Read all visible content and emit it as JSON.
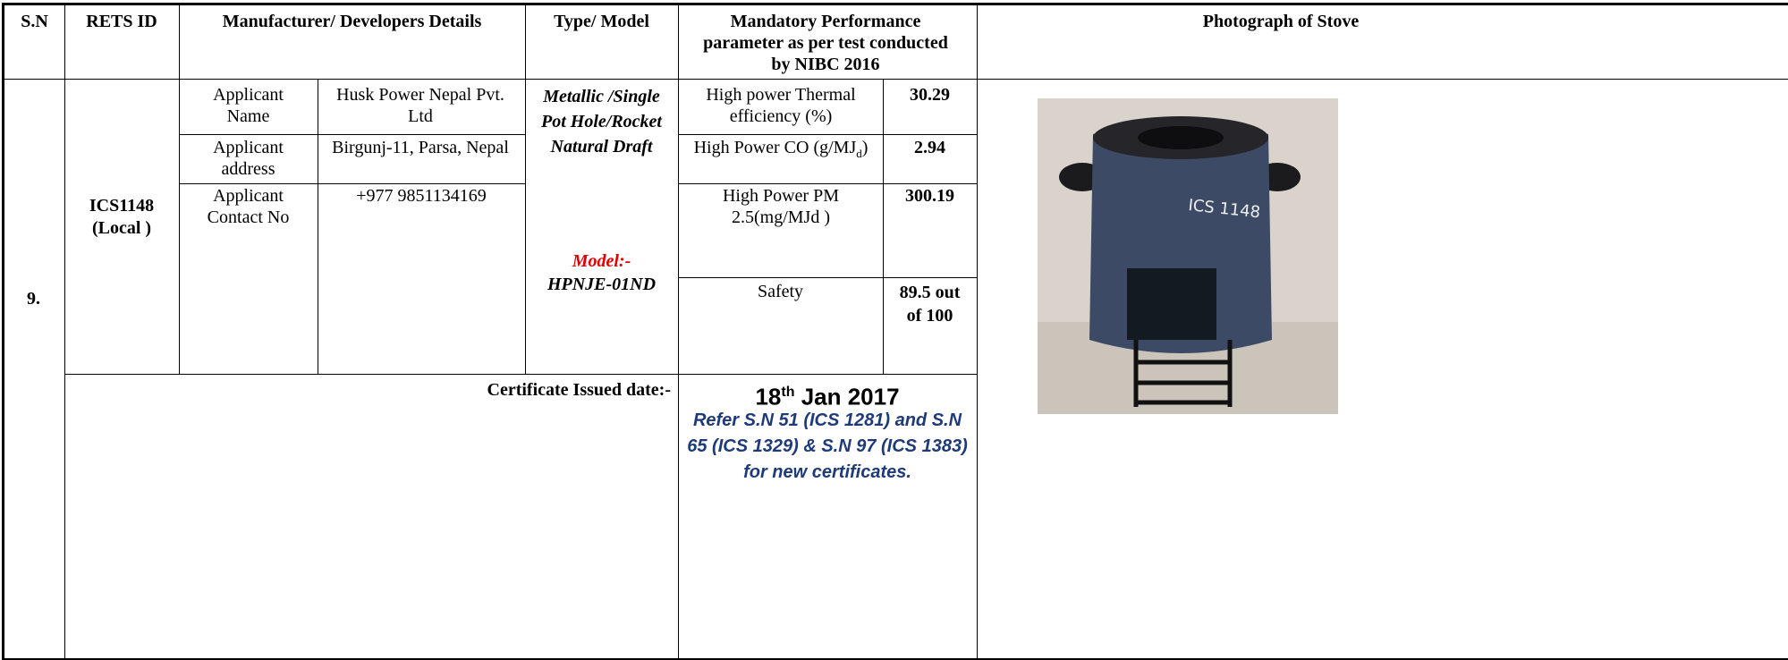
{
  "header": {
    "sn": "S.N",
    "rets_id": "RETS ID",
    "manufacturer": "Manufacturer/ Developers  Details",
    "type_model": "Type/ Model",
    "performance": "Mandatory Performance parameter as per test conducted by  NIBC 2016",
    "photo": "Photograph of Stove"
  },
  "row": {
    "sn": "9.",
    "rets_id": "ICS1148",
    "rets_note": "(Local )",
    "applicant": [
      {
        "label": "Applicant Name",
        "value": "Husk Power Nepal Pvt. Ltd"
      },
      {
        "label": "Applicant address",
        "value": "Birgunj-11, Parsa, Nepal"
      },
      {
        "label": "Applicant Contact No",
        "value": "+977 9851134169"
      }
    ],
    "type": "Metallic /Single Pot Hole/Rocket Natural Draft",
    "model_label": "Model:-",
    "model": "HPNJE-01ND",
    "performance": [
      {
        "parameter": "High power Thermal efficiency (%)",
        "value": "30.29"
      },
      {
        "parameter": "High Power CO (g/MJ",
        "sub": "d",
        "tail": ")",
        "value": "2.94"
      },
      {
        "parameter": "High Power PM 2.5(mg/MJd )",
        "value": "300.19"
      },
      {
        "parameter": "Safety",
        "value": "89.5 out of 100"
      }
    ],
    "certificate_label": "Certificate Issued date:-",
    "date_day": "18",
    "date_suffix": "th",
    "date_rest": " Jan 2017",
    "note": "Refer S.N 51 (ICS  1281) and S.N 65 (ICS 1329) & S.N 97 (ICS 1383)  for new certificates.",
    "photo_text": "ICS 1148"
  }
}
